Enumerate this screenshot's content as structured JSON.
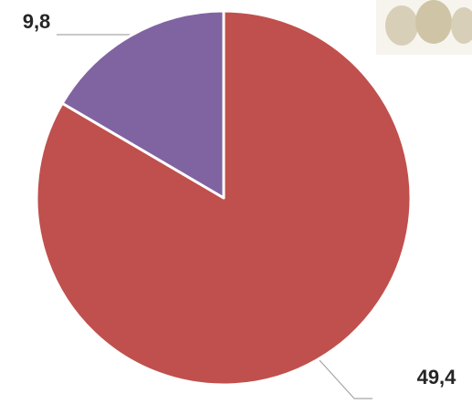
{
  "chart_data": {
    "type": "pie",
    "values": [
      49.4,
      9.8
    ],
    "value_labels": [
      "49,4",
      "9,8"
    ],
    "colors": [
      "#c0504d",
      "#8064a2"
    ]
  }
}
